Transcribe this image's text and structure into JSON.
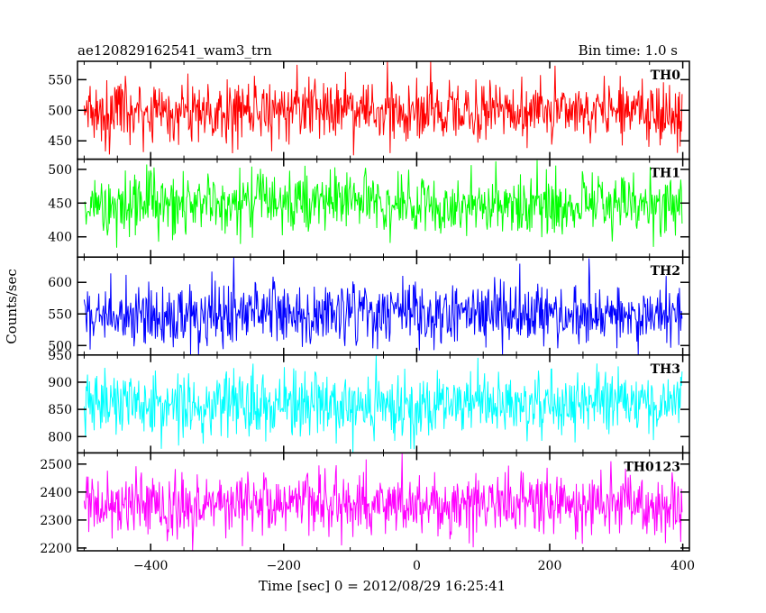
{
  "chart_data": {
    "type": "line",
    "title": "ae120829162541_wam3_trn",
    "subtitle": "Bin time: 1.0 s",
    "xlabel": "Time [sec] 0 = 2012/08/29 16:25:41",
    "ylabel": "Counts/sec",
    "xlim": [
      -510,
      410
    ],
    "x_ticks": [
      -400,
      -200,
      0,
      200,
      400
    ],
    "x_range": [
      -500,
      399
    ],
    "bin_time": 1.0,
    "grid": false,
    "panels": [
      {
        "name": "TH0",
        "color": "#ff0000",
        "ylim": [
          420,
          580
        ],
        "y_ticks": [
          450,
          500,
          550
        ],
        "level": 500,
        "spread": 25
      },
      {
        "name": "TH1",
        "color": "#00ff00",
        "ylim": [
          370,
          515
        ],
        "y_ticks": [
          400,
          450,
          500
        ],
        "level": 450,
        "spread": 22
      },
      {
        "name": "TH2",
        "color": "#0000ff",
        "ylim": [
          485,
          640
        ],
        "y_ticks": [
          500,
          550,
          600
        ],
        "level": 550,
        "spread": 25
      },
      {
        "name": "TH3",
        "color": "#00ffff",
        "ylim": [
          770,
          950
        ],
        "y_ticks": [
          800,
          850,
          900,
          950
        ],
        "level": 860,
        "spread": 30
      },
      {
        "name": "TH0123",
        "color": "#ff00ff",
        "ylim": [
          2190,
          2540
        ],
        "y_ticks": [
          2200,
          2300,
          2400,
          2500
        ],
        "level": 2355,
        "spread": 55
      }
    ]
  }
}
